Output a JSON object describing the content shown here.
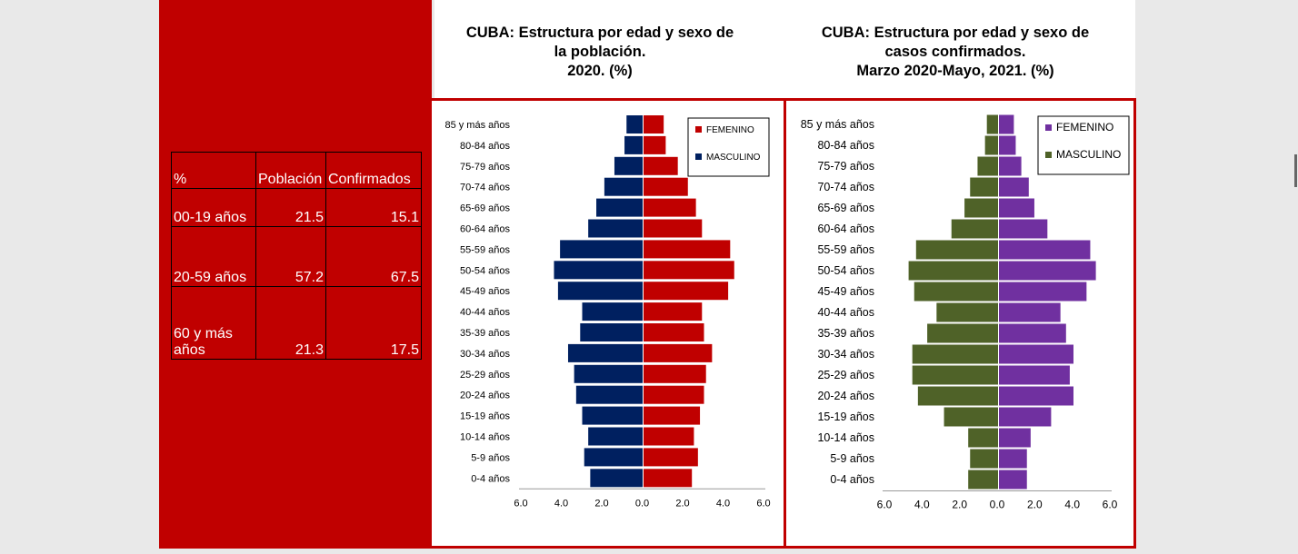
{
  "table": {
    "headers": [
      "%",
      "Población",
      "Confirmados"
    ],
    "rows": [
      {
        "label": "00-19 años",
        "poblacion": "21.5",
        "confirmados": "15.1"
      },
      {
        "label": "20-59 años",
        "poblacion": "57.2",
        "confirmados": "67.5"
      },
      {
        "label": "60 y más años",
        "poblacion": "21.3",
        "confirmados": "17.5"
      }
    ]
  },
  "colors": {
    "background": "#c00000",
    "chart1_femenino": "#c00000",
    "chart1_masculino": "#002060",
    "chart2_femenino": "#7030a0",
    "chart2_masculino": "#4f6228"
  },
  "chart_data": [
    {
      "type": "bar",
      "orientation": "horizontal-population-pyramid",
      "title": "CUBA: Estructura por edad y sexo de\nla población.\n2020. (%)",
      "categories": [
        "85 y más años",
        "80-84 años",
        "75-79 años",
        "70-74 años",
        "65-69 años",
        "60-64 años",
        "55-59 años",
        "50-54 años",
        "45-49 años",
        "40-44 años",
        "35-39 años",
        "30-34 años",
        "25-29 años",
        "20-24 años",
        "15-19 años",
        "10-14 años",
        "5-9 años",
        "0-4 años"
      ],
      "series": [
        {
          "name": "FEMENINO",
          "color": "#c00000",
          "values": [
            1.0,
            1.1,
            1.7,
            2.2,
            2.6,
            2.9,
            4.3,
            4.5,
            4.2,
            2.9,
            3.0,
            3.4,
            3.1,
            3.0,
            2.8,
            2.5,
            2.7,
            2.4
          ]
        },
        {
          "name": "MASCULINO",
          "color": "#002060",
          "values": [
            0.8,
            0.9,
            1.4,
            1.9,
            2.3,
            2.7,
            4.1,
            4.4,
            4.2,
            3.0,
            3.1,
            3.7,
            3.4,
            3.3,
            3.0,
            2.7,
            2.9,
            2.6
          ]
        }
      ],
      "xtick_labels": [
        "6.0",
        "4.0",
        "2.0",
        "0.0",
        "2.0",
        "4.0",
        "6.0"
      ],
      "xlim": [
        -6,
        6
      ],
      "legend": "top-right"
    },
    {
      "type": "bar",
      "orientation": "horizontal-population-pyramid",
      "title": "CUBA: Estructura por edad y sexo de\ncasos confirmados.\nMarzo 2020-Mayo, 2021. (%)",
      "categories": [
        "85 y más años",
        "80-84 años",
        "75-79 años",
        "70-74 años",
        "65-69 años",
        "60-64 años",
        "55-59 años",
        "50-54 años",
        "45-49 años",
        "40-44 años",
        "35-39 años",
        "30-34 años",
        "25-29 años",
        "20-24 años",
        "15-19 años",
        "10-14 años",
        "5-9 años",
        "0-4 años"
      ],
      "series": [
        {
          "name": "FEMENINO",
          "color": "#7030a0",
          "values": [
            0.8,
            0.9,
            1.2,
            1.6,
            1.9,
            2.6,
            4.9,
            5.2,
            4.7,
            3.3,
            3.6,
            4.0,
            3.8,
            4.0,
            2.8,
            1.7,
            1.5,
            1.5
          ]
        },
        {
          "name": "MASCULINO",
          "color": "#4f6228",
          "values": [
            0.6,
            0.7,
            1.1,
            1.5,
            1.8,
            2.5,
            4.4,
            4.8,
            4.5,
            3.3,
            3.8,
            4.6,
            4.6,
            4.3,
            2.9,
            1.6,
            1.5,
            1.6
          ]
        }
      ],
      "xtick_labels": [
        "6.0",
        "4.0",
        "2.0",
        "0.0",
        "2.0",
        "4.0",
        "6.0"
      ],
      "xlim": [
        -6,
        6
      ],
      "legend": "top-right"
    }
  ]
}
